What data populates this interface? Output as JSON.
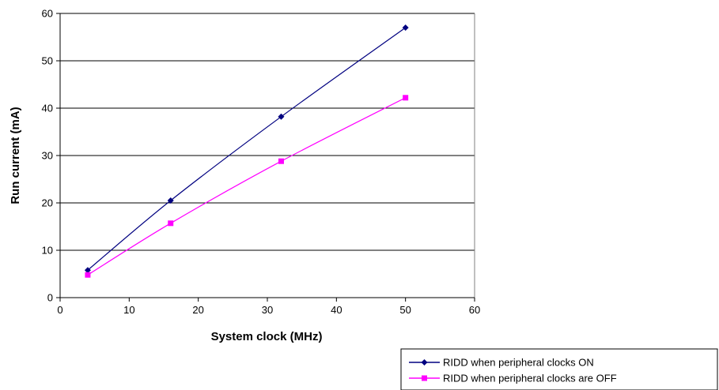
{
  "chart_data": {
    "type": "line",
    "xlabel": "System clock (MHz)",
    "ylabel": "Run current (mA)",
    "xlim": [
      0,
      60
    ],
    "ylim": [
      0,
      60
    ],
    "xticks": [
      "0",
      "10",
      "20",
      "30",
      "40",
      "50",
      "60"
    ],
    "yticks": [
      "0",
      "10",
      "20",
      "30",
      "40",
      "50",
      "60"
    ],
    "grid": "horizontal",
    "legend_position": "bottom-right",
    "series": [
      {
        "name": "RIDD when peripheral clocks ON",
        "color": "#000080",
        "marker": "diamond",
        "x": [
          4,
          16,
          32,
          50
        ],
        "y": [
          5.8,
          20.5,
          38.2,
          57.0
        ]
      },
      {
        "name": "RIDD when peripheral clocks are OFF",
        "color": "#ff00ff",
        "marker": "square",
        "x": [
          4,
          16,
          32,
          50
        ],
        "y": [
          4.8,
          15.7,
          28.8,
          42.2
        ]
      }
    ]
  }
}
